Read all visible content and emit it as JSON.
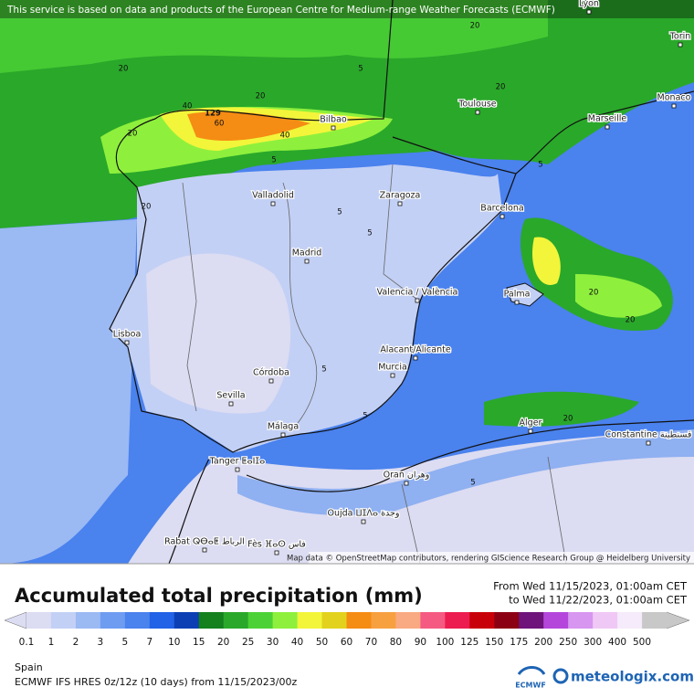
{
  "map": {
    "banner": "This service is based on data and products of the European Centre for Medium-range Weather Forecasts (ECMWF)",
    "attribution": "Map data © OpenStreetMap contributors, rendering GIScience Research Group @ Heidelberg University",
    "cities": [
      "Lyon",
      "Torin",
      "Monaco",
      "Marseille",
      "Toulouse",
      "Bilbao",
      "Valladolid",
      "Zaragoza",
      "Barcelona",
      "Madrid",
      "Valencia / València",
      "Palma",
      "Lisboa",
      "Alacant/Alicante",
      "Murcia",
      "Córdoba",
      "Sevilla",
      "Málaga",
      "Tanger ⵟⴰⵏⵊⴰ",
      "Oran وهران",
      "Alger",
      "Constantine قسنطينة",
      "Oujda ⵡⵊⴷⴰ وجدة",
      "Rabat ⵕⴱⴰⵟ الرباط",
      "Fès ⴼⴰⵙ فاس"
    ],
    "contour_labels": [
      "129",
      "60",
      "40",
      "40",
      "20",
      "20",
      "20",
      "20",
      "20",
      "20",
      "5",
      "5",
      "5",
      "5",
      "5",
      "5",
      "20",
      "20",
      "20",
      "5",
      "5"
    ]
  },
  "legend": {
    "title": "Accumulated total precipitation (mm)",
    "from": "From Wed 11/15/2023, 01:00am CET",
    "to": "to Wed 11/22/2023, 01:00am CET",
    "scale": [
      {
        "label": "0.1",
        "color": "#dcdcf2"
      },
      {
        "label": "1",
        "color": "#c3d0f5"
      },
      {
        "label": "2",
        "color": "#9bb9f3"
      },
      {
        "label": "3",
        "color": "#6e9cf1"
      },
      {
        "label": "5",
        "color": "#4a82ee"
      },
      {
        "label": "7",
        "color": "#2262e6"
      },
      {
        "label": "10",
        "color": "#0c3fb4"
      },
      {
        "label": "15",
        "color": "#14801e"
      },
      {
        "label": "20",
        "color": "#2aa82a"
      },
      {
        "label": "25",
        "color": "#4cd236"
      },
      {
        "label": "30",
        "color": "#8ef03c"
      },
      {
        "label": "40",
        "color": "#f2f53a"
      },
      {
        "label": "50",
        "color": "#e2d21e"
      },
      {
        "label": "60",
        "color": "#f58c14"
      },
      {
        "label": "70",
        "color": "#f7a040"
      },
      {
        "label": "80",
        "color": "#f9aa82"
      },
      {
        "label": "90",
        "color": "#f55a82"
      },
      {
        "label": "100",
        "color": "#ec1c50"
      },
      {
        "label": "125",
        "color": "#c8000a"
      },
      {
        "label": "150",
        "color": "#8c0014"
      },
      {
        "label": "175",
        "color": "#6e147a"
      },
      {
        "label": "200",
        "color": "#b446dc"
      },
      {
        "label": "250",
        "color": "#d796f0"
      },
      {
        "label": "300",
        "color": "#f0c8f5"
      },
      {
        "label": "400",
        "color": "#f5ebfa"
      },
      {
        "label": "500",
        "color": "#c8c8c8"
      }
    ]
  },
  "footer": {
    "region": "Spain",
    "model": "ECMWF IFS HRES 0z/12z (10 days) from 11/15/2023/00z",
    "ecmwf_logo": "ECMWF",
    "brand": "meteologix.com"
  }
}
